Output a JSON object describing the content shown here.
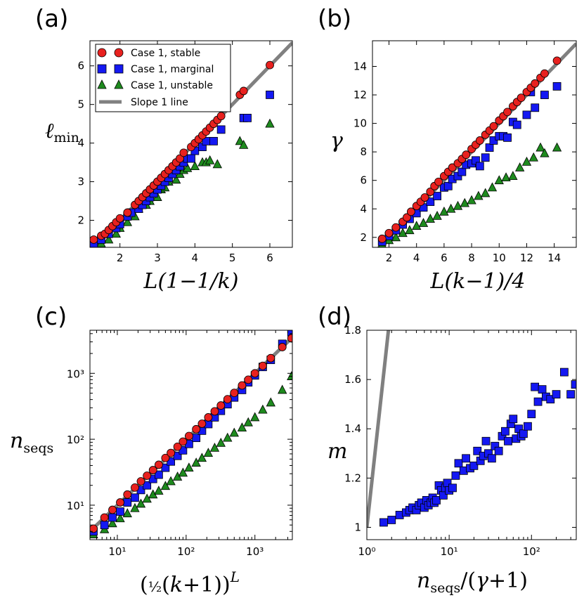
{
  "colors": {
    "stable": "#e8211f",
    "marginal": "#1418f2",
    "unstable": "#1e8a1e",
    "slope": "#808080"
  },
  "chart_data": [
    {
      "id": "a",
      "panel_label": "(a)",
      "type": "scatter",
      "xlabel": "L(1−1/k)",
      "ylabel": "ℓmin",
      "xlim": [
        1.2,
        6.6
      ],
      "ylim": [
        1.3,
        6.65
      ],
      "xticks": [
        2,
        3,
        4,
        5,
        6
      ],
      "yticks": [
        2,
        3,
        4,
        5,
        6
      ],
      "legend": {
        "position": "top-left",
        "entries": [
          "Case 1, stable",
          "Case 1, marginal",
          "Case 1, unstable",
          "Slope 1 line"
        ]
      },
      "slope_line": {
        "x": [
          1.2,
          6.6
        ],
        "y": [
          1.2,
          6.6
        ]
      },
      "series": [
        {
          "name": "Case 1, stable",
          "marker": "circle",
          "color_key": "stable",
          "x": [
            1.3,
            1.5,
            1.6,
            1.7,
            1.8,
            1.9,
            2.0,
            2.2,
            2.4,
            2.5,
            2.6,
            2.7,
            2.8,
            2.9,
            3.0,
            3.1,
            3.2,
            3.3,
            3.4,
            3.5,
            3.6,
            3.7,
            3.9,
            4.0,
            4.1,
            4.2,
            4.3,
            4.4,
            4.5,
            4.6,
            4.7,
            5.2,
            5.3,
            6.0
          ],
          "y": [
            1.5,
            1.6,
            1.65,
            1.75,
            1.85,
            1.95,
            2.05,
            2.2,
            2.4,
            2.5,
            2.6,
            2.7,
            2.8,
            2.9,
            3.0,
            3.1,
            3.2,
            3.3,
            3.4,
            3.5,
            3.6,
            3.75,
            3.9,
            4.0,
            4.1,
            4.2,
            4.3,
            4.4,
            4.5,
            4.6,
            4.7,
            5.25,
            5.35,
            6.02
          ]
        },
        {
          "name": "Case 1, marginal",
          "marker": "square",
          "color_key": "marginal",
          "x": [
            1.3,
            1.5,
            1.7,
            1.9,
            2.0,
            2.2,
            2.3,
            2.5,
            2.6,
            2.7,
            2.8,
            2.9,
            3.0,
            3.1,
            3.2,
            3.3,
            3.4,
            3.5,
            3.6,
            3.7,
            3.8,
            3.9,
            4.0,
            4.2,
            4.3,
            4.5,
            4.7,
            5.3,
            5.4,
            6.0
          ],
          "y": [
            1.35,
            1.5,
            1.65,
            1.8,
            1.9,
            2.1,
            2.2,
            2.3,
            2.4,
            2.5,
            2.6,
            2.7,
            2.8,
            2.9,
            3.0,
            3.1,
            3.2,
            3.3,
            3.4,
            3.5,
            3.6,
            3.6,
            3.8,
            3.9,
            4.05,
            4.05,
            4.35,
            4.65,
            4.65,
            5.25
          ]
        },
        {
          "name": "Case 1, unstable",
          "marker": "triangle",
          "color_key": "unstable",
          "x": [
            1.3,
            1.5,
            1.7,
            1.9,
            2.0,
            2.2,
            2.4,
            2.5,
            2.7,
            2.8,
            3.0,
            3.1,
            3.2,
            3.3,
            3.5,
            3.6,
            3.7,
            3.8,
            4.0,
            4.2,
            4.3,
            4.4,
            4.6,
            5.2,
            5.3,
            6.0
          ],
          "y": [
            1.3,
            1.4,
            1.5,
            1.65,
            1.8,
            1.95,
            2.1,
            2.3,
            2.4,
            2.5,
            2.6,
            2.8,
            2.85,
            3.0,
            3.05,
            3.2,
            3.3,
            3.35,
            3.4,
            3.5,
            3.5,
            3.55,
            3.45,
            4.05,
            3.95,
            4.5
          ]
        }
      ]
    },
    {
      "id": "b",
      "panel_label": "(b)",
      "type": "scatter",
      "xlabel": "L(k−1)/4",
      "ylabel": "γ",
      "xlim": [
        0.8,
        15.6
      ],
      "ylim": [
        1.3,
        15.8
      ],
      "xticks": [
        2,
        4,
        6,
        8,
        10,
        12,
        14
      ],
      "yticks": [
        2,
        4,
        6,
        8,
        10,
        12,
        14
      ],
      "slope_line": {
        "x": [
          0.8,
          15.6
        ],
        "y": [
          0.8,
          15.6
        ]
      },
      "series": [
        {
          "name": "Case 1, stable",
          "marker": "circle",
          "color_key": "stable",
          "x": [
            1.5,
            2.0,
            2.5,
            3.0,
            3.3,
            3.6,
            4.0,
            4.3,
            4.6,
            5.0,
            5.3,
            5.6,
            6.0,
            6.3,
            6.6,
            7.0,
            7.3,
            7.6,
            8.0,
            8.3,
            8.6,
            9.0,
            9.3,
            9.6,
            10.0,
            10.3,
            10.6,
            11.0,
            11.3,
            11.6,
            12.0,
            12.3,
            12.6,
            13.0,
            13.3,
            14.2
          ],
          "y": [
            1.9,
            2.3,
            2.7,
            3.1,
            3.4,
            3.8,
            4.2,
            4.5,
            4.8,
            5.2,
            5.6,
            5.9,
            6.3,
            6.6,
            6.9,
            7.2,
            7.5,
            7.8,
            8.2,
            8.5,
            8.8,
            9.2,
            9.5,
            9.8,
            10.2,
            10.5,
            10.8,
            11.2,
            11.5,
            11.8,
            12.2,
            12.5,
            12.8,
            13.2,
            13.5,
            14.4
          ]
        },
        {
          "name": "Case 1, marginal",
          "marker": "square",
          "color_key": "marginal",
          "x": [
            1.5,
            2.0,
            2.5,
            3.0,
            3.5,
            4.0,
            4.5,
            5.0,
            5.5,
            6.0,
            6.3,
            6.6,
            7.0,
            7.3,
            7.6,
            8.0,
            8.3,
            8.6,
            9.0,
            9.3,
            9.6,
            10.0,
            10.3,
            10.6,
            11.0,
            11.3,
            12.0,
            12.3,
            12.6,
            13.3,
            14.2
          ],
          "y": [
            1.7,
            2.1,
            2.5,
            2.9,
            3.3,
            3.7,
            4.1,
            4.5,
            4.9,
            5.5,
            5.6,
            6.1,
            6.3,
            6.6,
            7.1,
            7.2,
            7.4,
            7.0,
            7.6,
            8.3,
            8.8,
            9.1,
            9.1,
            9.0,
            10.1,
            9.9,
            10.6,
            12.2,
            11.1,
            12.0,
            12.6
          ]
        },
        {
          "name": "Case 1, unstable",
          "marker": "triangle",
          "color_key": "unstable",
          "x": [
            1.5,
            2.0,
            2.5,
            3.0,
            3.5,
            4.0,
            4.5,
            5.0,
            5.5,
            6.0,
            6.5,
            7.0,
            7.5,
            8.0,
            8.5,
            9.0,
            9.5,
            10.0,
            10.5,
            11.0,
            11.5,
            12.0,
            12.5,
            13.0,
            13.3,
            14.2
          ],
          "y": [
            1.5,
            1.8,
            2.0,
            2.3,
            2.5,
            2.8,
            3.0,
            3.3,
            3.5,
            3.8,
            4.0,
            4.2,
            4.4,
            4.6,
            4.9,
            5.1,
            5.5,
            6.0,
            6.2,
            6.3,
            6.9,
            7.3,
            7.6,
            8.3,
            7.9,
            8.3
          ]
        }
      ]
    },
    {
      "id": "c",
      "panel_label": "(c)",
      "type": "scatter",
      "scale": "log-log",
      "xlabel": "(½(k+1))^L",
      "ylabel": "n_seqs",
      "xlim": [
        4,
        3500
      ],
      "ylim": [
        3,
        4500
      ],
      "xtick_values": [
        10,
        100,
        1000
      ],
      "xtick_labels": [
        "10¹",
        "10²",
        "10³"
      ],
      "ytick_values": [
        10,
        100,
        1000
      ],
      "ytick_labels": [
        "10¹",
        "10²",
        "10³"
      ],
      "slope_line": {
        "x": [
          4,
          3500
        ],
        "y": [
          4,
          3500
        ]
      },
      "series": [
        {
          "name": "Case 1, stable",
          "marker": "circle",
          "color_key": "stable",
          "x": [
            4.5,
            6.5,
            8.5,
            11,
            14,
            18,
            22,
            27,
            33,
            40,
            50,
            60,
            75,
            90,
            110,
            140,
            170,
            210,
            260,
            320,
            400,
            500,
            650,
            800,
            1000,
            1300,
            1700,
            2500,
            3400
          ],
          "y": [
            4.4,
            6.5,
            8.5,
            11,
            14.5,
            18.5,
            23,
            28,
            34,
            41,
            52,
            62,
            77,
            92,
            112,
            142,
            172,
            215,
            265,
            325,
            405,
            505,
            655,
            800,
            1000,
            1300,
            1700,
            2500,
            3400
          ]
        },
        {
          "name": "Case 1, marginal",
          "marker": "square",
          "color_key": "marginal",
          "x": [
            4.5,
            6.5,
            8.5,
            11,
            14,
            18,
            22,
            27,
            33,
            40,
            50,
            60,
            75,
            90,
            110,
            140,
            170,
            210,
            260,
            320,
            400,
            500,
            650,
            800,
            1000,
            1300,
            1700,
            2500,
            3400
          ],
          "y": [
            4.0,
            5.0,
            6.5,
            8.0,
            11,
            13,
            17,
            20,
            25,
            29,
            37,
            46,
            56,
            68,
            85,
            105,
            135,
            170,
            215,
            270,
            340,
            430,
            560,
            730,
            930,
            1250,
            1600,
            2800,
            4200
          ]
        },
        {
          "name": "Case 1, unstable",
          "marker": "triangle",
          "color_key": "unstable",
          "x": [
            4.5,
            6.5,
            8.5,
            11,
            14,
            18,
            22,
            27,
            33,
            40,
            50,
            60,
            75,
            90,
            110,
            140,
            170,
            210,
            260,
            320,
            400,
            500,
            650,
            800,
            1000,
            1300,
            1700,
            2500,
            3400
          ],
          "y": [
            3.6,
            4.3,
            5.3,
            6.3,
            7.5,
            9.0,
            10.5,
            12.5,
            14.5,
            16.5,
            19.5,
            23,
            27,
            31,
            37,
            44,
            52,
            62,
            74,
            88,
            105,
            125,
            150,
            180,
            215,
            280,
            360,
            560,
            900
          ]
        }
      ]
    },
    {
      "id": "d",
      "panel_label": "(d)",
      "type": "scatter",
      "scale": "log-x",
      "xlabel": "n_seqs/(γ+1)",
      "ylabel": "m",
      "xlim": [
        1,
        350
      ],
      "ylim": [
        0.95,
        1.8
      ],
      "xtick_values": [
        1,
        10,
        100
      ],
      "xtick_labels": [
        "10⁰",
        "10¹",
        "10²"
      ],
      "yticks": [
        1.2,
        1.4,
        1.6,
        1.8
      ],
      "yticks_extra": [
        {
          "value": 1.0,
          "label": "1"
        }
      ],
      "slope_line": {
        "x": [
          1.0,
          1.83
        ],
        "y": [
          1.0,
          1.8
        ]
      },
      "series": [
        {
          "name": "Case 1, marginal",
          "marker": "square",
          "color_key": "marginal",
          "x": [
            1.6,
            2.0,
            2.5,
            3.0,
            3.3,
            3.6,
            4.0,
            4.3,
            4.6,
            5.0,
            5.3,
            5.6,
            6.0,
            6.3,
            6.6,
            7.0,
            7.5,
            8.0,
            8.5,
            9.0,
            9.5,
            10,
            11,
            12,
            13,
            15,
            16,
            18,
            20,
            22,
            24,
            26,
            28,
            30,
            33,
            36,
            40,
            44,
            48,
            52,
            56,
            60,
            65,
            70,
            75,
            80,
            90,
            100,
            110,
            120,
            135,
            150,
            170,
            200,
            250,
            300,
            340
          ],
          "y": [
            1.02,
            1.03,
            1.05,
            1.06,
            1.07,
            1.08,
            1.07,
            1.09,
            1.1,
            1.08,
            1.11,
            1.09,
            1.1,
            1.12,
            1.1,
            1.11,
            1.17,
            1.15,
            1.13,
            1.16,
            1.18,
            1.15,
            1.16,
            1.21,
            1.26,
            1.23,
            1.28,
            1.24,
            1.25,
            1.31,
            1.27,
            1.29,
            1.35,
            1.3,
            1.28,
            1.33,
            1.31,
            1.37,
            1.39,
            1.35,
            1.42,
            1.44,
            1.36,
            1.4,
            1.37,
            1.38,
            1.41,
            1.46,
            1.57,
            1.51,
            1.56,
            1.53,
            1.52,
            1.54,
            1.63,
            1.54,
            1.58
          ]
        }
      ]
    }
  ]
}
